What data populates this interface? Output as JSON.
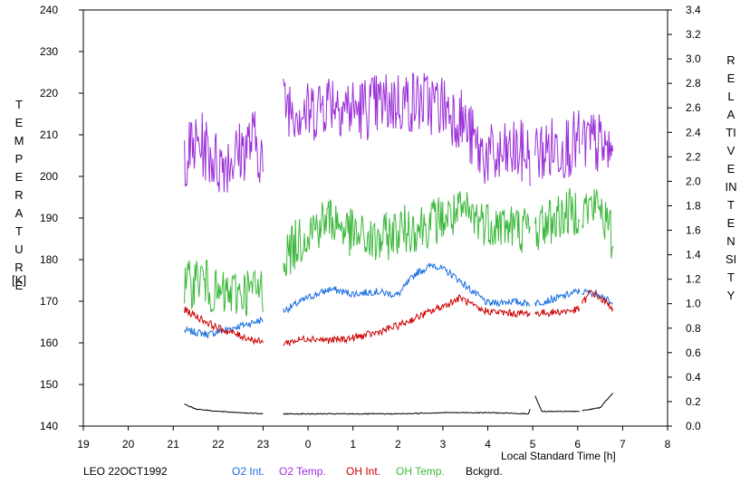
{
  "chart_data": {
    "type": "line",
    "title": "",
    "left_axis_label": "TEMPERATURE",
    "left_axis_unit": "[K]",
    "right_axis_label": "RELATIVE  INTENSITY",
    "xlabel": "Local Standard Time [h]",
    "dataset_label": "LEO 22OCT1992",
    "x_ticks": [
      "19",
      "20",
      "21",
      "22",
      "23",
      "0",
      "1",
      "2",
      "3",
      "4",
      "5",
      "6",
      "7",
      "8"
    ],
    "x_range": [
      19,
      32
    ],
    "y_left_ticks": [
      140,
      150,
      160,
      170,
      180,
      190,
      200,
      210,
      220,
      230,
      240
    ],
    "y_left_range": [
      140,
      240
    ],
    "y_right_ticks": [
      "0.0",
      "0.2",
      "0.4",
      "0.6",
      "0.8",
      "1.0",
      "1.2",
      "1.4",
      "1.6",
      "1.8",
      "2.0",
      "2.2",
      "2.4",
      "2.6",
      "2.8",
      "3.0",
      "3.2",
      "3.4"
    ],
    "y_right_range": [
      0.0,
      3.4
    ],
    "segments": [
      [
        21.25,
        23.0
      ],
      [
        23.45,
        28.95
      ],
      [
        29.05,
        30.05
      ],
      [
        30.1,
        30.8
      ]
    ],
    "series": [
      {
        "name": "O2 Int.",
        "axis": "right",
        "color": "#1a6fe0",
        "points": [
          [
            21.25,
            0.78
          ],
          [
            21.8,
            0.75
          ],
          [
            22.3,
            0.8
          ],
          [
            23.0,
            0.87
          ],
          [
            23.5,
            0.95
          ],
          [
            24.0,
            1.05
          ],
          [
            24.5,
            1.12
          ],
          [
            25.0,
            1.08
          ],
          [
            25.5,
            1.1
          ],
          [
            26.0,
            1.07
          ],
          [
            26.4,
            1.25
          ],
          [
            26.8,
            1.32
          ],
          [
            27.2,
            1.24
          ],
          [
            27.6,
            1.12
          ],
          [
            28.0,
            1.0
          ],
          [
            28.5,
            1.02
          ],
          [
            29.0,
            1.0
          ],
          [
            29.5,
            1.04
          ],
          [
            30.0,
            1.1
          ],
          [
            30.5,
            1.08
          ],
          [
            30.8,
            0.98
          ]
        ]
      },
      {
        "name": "O2 Temp.",
        "axis": "left",
        "color": "#9b30d8",
        "points": [
          [
            21.25,
            205
          ],
          [
            21.6,
            208
          ],
          [
            22.0,
            203
          ],
          [
            22.4,
            205
          ],
          [
            22.8,
            209
          ],
          [
            23.0,
            204
          ],
          [
            23.5,
            218
          ],
          [
            24.0,
            215
          ],
          [
            24.5,
            219
          ],
          [
            25.0,
            216
          ],
          [
            25.5,
            217
          ],
          [
            26.0,
            218
          ],
          [
            26.5,
            218
          ],
          [
            27.0,
            217
          ],
          [
            27.4,
            214
          ],
          [
            27.8,
            206
          ],
          [
            28.2,
            204
          ],
          [
            28.6,
            206
          ],
          [
            29.0,
            205
          ],
          [
            29.5,
            207
          ],
          [
            30.0,
            208
          ],
          [
            30.4,
            208
          ],
          [
            30.8,
            205
          ]
        ]
      },
      {
        "name": "OH Int.",
        "axis": "right",
        "color": "#cc0000",
        "points": [
          [
            21.25,
            0.95
          ],
          [
            21.6,
            0.88
          ],
          [
            22.0,
            0.8
          ],
          [
            22.4,
            0.75
          ],
          [
            23.0,
            0.68
          ],
          [
            23.5,
            0.68
          ],
          [
            24.0,
            0.72
          ],
          [
            24.5,
            0.7
          ],
          [
            25.0,
            0.72
          ],
          [
            25.5,
            0.76
          ],
          [
            26.0,
            0.82
          ],
          [
            26.5,
            0.9
          ],
          [
            27.0,
            0.98
          ],
          [
            27.4,
            1.05
          ],
          [
            27.8,
            0.95
          ],
          [
            28.2,
            0.93
          ],
          [
            28.6,
            0.92
          ],
          [
            29.0,
            0.92
          ],
          [
            29.5,
            0.93
          ],
          [
            30.0,
            0.95
          ],
          [
            30.3,
            1.1
          ],
          [
            30.8,
            0.96
          ]
        ]
      },
      {
        "name": "OH Temp.",
        "axis": "left",
        "color": "#3cb83c",
        "points": [
          [
            21.25,
            173
          ],
          [
            21.6,
            176
          ],
          [
            22.0,
            171
          ],
          [
            22.4,
            172
          ],
          [
            23.0,
            173
          ],
          [
            23.5,
            181
          ],
          [
            24.0,
            187
          ],
          [
            24.5,
            190
          ],
          [
            25.0,
            186
          ],
          [
            25.5,
            184
          ],
          [
            26.0,
            187
          ],
          [
            26.5,
            188
          ],
          [
            27.0,
            190
          ],
          [
            27.5,
            191
          ],
          [
            28.0,
            189
          ],
          [
            28.5,
            188
          ],
          [
            29.0,
            187
          ],
          [
            29.5,
            190
          ],
          [
            30.0,
            192
          ],
          [
            30.5,
            193
          ],
          [
            30.8,
            184
          ]
        ]
      },
      {
        "name": "Bckgrd.",
        "axis": "right",
        "color": "#000000",
        "points": [
          [
            21.25,
            0.18
          ],
          [
            21.5,
            0.14
          ],
          [
            22.0,
            0.12
          ],
          [
            22.5,
            0.11
          ],
          [
            23.0,
            0.1
          ],
          [
            23.5,
            0.1
          ],
          [
            24.0,
            0.1
          ],
          [
            25.0,
            0.1
          ],
          [
            26.0,
            0.1
          ],
          [
            27.0,
            0.11
          ],
          [
            28.0,
            0.11
          ],
          [
            28.9,
            0.1
          ],
          [
            29.05,
            0.25
          ],
          [
            29.2,
            0.12
          ],
          [
            30.0,
            0.12
          ],
          [
            30.5,
            0.15
          ],
          [
            30.8,
            0.28
          ]
        ]
      }
    ]
  }
}
